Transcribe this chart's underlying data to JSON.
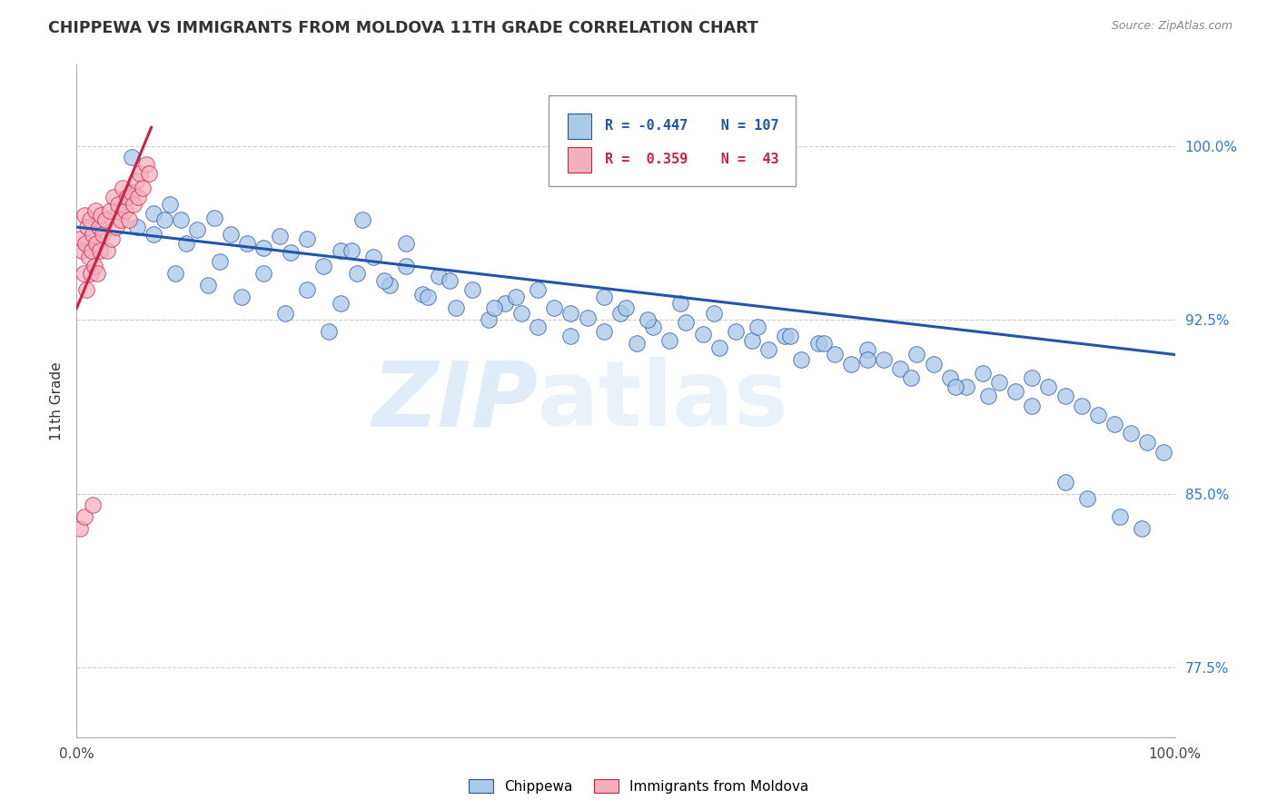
{
  "title": "CHIPPEWA VS IMMIGRANTS FROM MOLDOVA 11TH GRADE CORRELATION CHART",
  "source": "Source: ZipAtlas.com",
  "ylabel": "11th Grade",
  "ytick_labels": [
    "100.0%",
    "92.5%",
    "85.0%",
    "77.5%"
  ],
  "ytick_values": [
    1.0,
    0.925,
    0.85,
    0.775
  ],
  "xlim": [
    0.0,
    1.0
  ],
  "ylim": [
    0.745,
    1.035
  ],
  "blue_color": "#aac8e8",
  "pink_color": "#f5b0c0",
  "blue_line_color": "#2255aa",
  "pink_line_color": "#cc2244",
  "watermark_zip": "ZIP",
  "watermark_atlas": "atlas",
  "legend_blue_r": "R = -0.447",
  "legend_blue_n": "N = 107",
  "legend_pink_r": "R =  0.359",
  "legend_pink_n": "N =  43",
  "blue_x": [
    0.018,
    0.038,
    0.055,
    0.07,
    0.085,
    0.095,
    0.11,
    0.125,
    0.14,
    0.155,
    0.17,
    0.185,
    0.195,
    0.21,
    0.225,
    0.24,
    0.255,
    0.27,
    0.285,
    0.3,
    0.315,
    0.33,
    0.345,
    0.36,
    0.375,
    0.39,
    0.405,
    0.42,
    0.435,
    0.45,
    0.465,
    0.48,
    0.495,
    0.51,
    0.525,
    0.54,
    0.555,
    0.57,
    0.585,
    0.6,
    0.615,
    0.63,
    0.645,
    0.66,
    0.675,
    0.69,
    0.705,
    0.72,
    0.735,
    0.75,
    0.765,
    0.78,
    0.795,
    0.81,
    0.825,
    0.84,
    0.855,
    0.87,
    0.885,
    0.9,
    0.915,
    0.93,
    0.945,
    0.96,
    0.975,
    0.99,
    0.05,
    0.05,
    0.07,
    0.08,
    0.09,
    0.1,
    0.12,
    0.13,
    0.15,
    0.17,
    0.19,
    0.21,
    0.23,
    0.24,
    0.25,
    0.26,
    0.28,
    0.3,
    0.32,
    0.34,
    0.38,
    0.4,
    0.42,
    0.45,
    0.48,
    0.5,
    0.52,
    0.55,
    0.58,
    0.62,
    0.65,
    0.68,
    0.72,
    0.76,
    0.8,
    0.83,
    0.87,
    0.9,
    0.92,
    0.95,
    0.97
  ],
  "blue_y": [
    0.968,
    0.972,
    0.965,
    0.971,
    0.975,
    0.968,
    0.964,
    0.969,
    0.962,
    0.958,
    0.956,
    0.961,
    0.954,
    0.96,
    0.948,
    0.955,
    0.945,
    0.952,
    0.94,
    0.948,
    0.936,
    0.944,
    0.93,
    0.938,
    0.925,
    0.932,
    0.928,
    0.922,
    0.93,
    0.918,
    0.926,
    0.92,
    0.928,
    0.915,
    0.922,
    0.916,
    0.924,
    0.919,
    0.913,
    0.92,
    0.916,
    0.912,
    0.918,
    0.908,
    0.915,
    0.91,
    0.906,
    0.912,
    0.908,
    0.904,
    0.91,
    0.906,
    0.9,
    0.896,
    0.902,
    0.898,
    0.894,
    0.9,
    0.896,
    0.892,
    0.888,
    0.884,
    0.88,
    0.876,
    0.872,
    0.868,
    0.98,
    0.995,
    0.962,
    0.968,
    0.945,
    0.958,
    0.94,
    0.95,
    0.935,
    0.945,
    0.928,
    0.938,
    0.92,
    0.932,
    0.955,
    0.968,
    0.942,
    0.958,
    0.935,
    0.942,
    0.93,
    0.935,
    0.938,
    0.928,
    0.935,
    0.93,
    0.925,
    0.932,
    0.928,
    0.922,
    0.918,
    0.915,
    0.908,
    0.9,
    0.896,
    0.892,
    0.888,
    0.855,
    0.848,
    0.84,
    0.835
  ],
  "pink_x": [
    0.003,
    0.005,
    0.006,
    0.007,
    0.008,
    0.009,
    0.01,
    0.011,
    0.012,
    0.013,
    0.014,
    0.015,
    0.016,
    0.017,
    0.018,
    0.019,
    0.02,
    0.021,
    0.022,
    0.024,
    0.026,
    0.028,
    0.03,
    0.032,
    0.034,
    0.036,
    0.038,
    0.04,
    0.042,
    0.044,
    0.046,
    0.048,
    0.05,
    0.052,
    0.054,
    0.056,
    0.058,
    0.06,
    0.063,
    0.066,
    0.003,
    0.007,
    0.015
  ],
  "pink_y": [
    0.96,
    0.955,
    0.945,
    0.97,
    0.958,
    0.938,
    0.965,
    0.952,
    0.968,
    0.945,
    0.955,
    0.962,
    0.948,
    0.972,
    0.958,
    0.945,
    0.965,
    0.955,
    0.97,
    0.962,
    0.968,
    0.955,
    0.972,
    0.96,
    0.978,
    0.965,
    0.975,
    0.968,
    0.982,
    0.972,
    0.978,
    0.968,
    0.98,
    0.975,
    0.985,
    0.978,
    0.988,
    0.982,
    0.992,
    0.988,
    0.835,
    0.84,
    0.845
  ]
}
